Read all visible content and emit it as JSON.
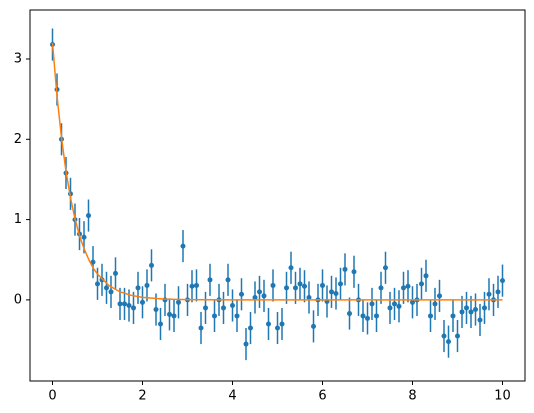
{
  "chart_data": {
    "type": "errorbar",
    "xlim": [
      -0.5,
      10.5
    ],
    "ylim": [
      -1.01,
      3.61
    ],
    "xticks": [
      0,
      2,
      4,
      6,
      8,
      10
    ],
    "yticks": [
      0,
      1,
      2,
      3
    ],
    "grid": false,
    "series": [
      {
        "type": "errorbar",
        "color": "#1f77b4",
        "yerr": 0.2,
        "x": [
          0,
          0.1,
          0.2,
          0.3,
          0.4,
          0.5,
          0.6,
          0.7,
          0.8,
          0.9,
          1,
          1.1,
          1.2,
          1.3,
          1.4,
          1.5,
          1.6,
          1.7,
          1.8,
          1.9,
          2,
          2.1,
          2.2,
          2.3,
          2.4,
          2.5,
          2.6,
          2.7,
          2.8,
          2.9,
          3,
          3.1,
          3.2,
          3.3,
          3.4,
          3.5,
          3.6,
          3.7,
          3.8,
          3.9,
          4,
          4.1,
          4.2,
          4.3,
          4.4,
          4.5,
          4.6,
          4.7,
          4.8,
          4.9,
          5,
          5.1,
          5.2,
          5.3,
          5.4,
          5.5,
          5.6,
          5.7,
          5.8,
          5.9,
          6,
          6.1,
          6.2,
          6.3,
          6.4,
          6.5,
          6.6,
          6.7,
          6.8,
          6.9,
          7,
          7.1,
          7.2,
          7.3,
          7.4,
          7.5,
          7.6,
          7.7,
          7.8,
          7.9,
          8,
          8.1,
          8.2,
          8.3,
          8.4,
          8.5,
          8.6,
          8.7,
          8.8,
          8.9,
          9,
          9.1,
          9.2,
          9.3,
          9.4,
          9.5,
          9.6,
          9.7,
          9.8,
          9.9,
          10
        ],
        "values": [
          3.18,
          2.62,
          2.0,
          1.58,
          1.32,
          1.0,
          0.82,
          0.78,
          1.05,
          0.47,
          0.2,
          0.25,
          0.15,
          0.1,
          0.33,
          -0.05,
          -0.05,
          -0.07,
          -0.1,
          0.15,
          -0.03,
          0.18,
          0.43,
          -0.12,
          -0.3,
          0.0,
          -0.18,
          -0.2,
          -0.03,
          0.67,
          0.0,
          0.17,
          0.18,
          -0.35,
          -0.1,
          0.25,
          -0.2,
          0.0,
          -0.1,
          0.25,
          -0.07,
          -0.2,
          0.07,
          -0.55,
          -0.35,
          0.03,
          0.1,
          0.05,
          -0.3,
          0.18,
          -0.35,
          -0.3,
          0.15,
          0.4,
          0.15,
          0.2,
          0.17,
          0.03,
          -0.33,
          0.0,
          0.18,
          -0.02,
          0.1,
          0.08,
          0.2,
          0.38,
          -0.17,
          0.35,
          0.0,
          -0.2,
          -0.23,
          -0.05,
          -0.2,
          0.15,
          0.4,
          -0.1,
          -0.05,
          -0.08,
          0.15,
          0.17,
          -0.03,
          0.0,
          0.2,
          0.3,
          -0.2,
          -0.05,
          0.05,
          -0.45,
          -0.52,
          -0.2,
          -0.45,
          -0.15,
          -0.1,
          -0.15,
          -0.12,
          -0.25,
          -0.1,
          0.07,
          0.0,
          0.1,
          0.24
        ]
      },
      {
        "type": "line",
        "color": "#ff7f0e",
        "x": [
          0,
          0.1,
          0.2,
          0.3,
          0.4,
          0.5,
          0.6,
          0.7,
          0.8,
          0.9,
          1,
          1.25,
          1.5,
          1.75,
          2,
          2.5,
          3,
          4,
          5,
          6,
          7,
          8,
          9,
          10
        ],
        "values": [
          3.2,
          2.54,
          2.02,
          1.6,
          1.27,
          1.01,
          0.8,
          0.64,
          0.51,
          0.4,
          0.32,
          0.18,
          0.1,
          0.057,
          0.032,
          0.01,
          0.003,
          0,
          0,
          0,
          0,
          0,
          0,
          0
        ]
      }
    ]
  }
}
